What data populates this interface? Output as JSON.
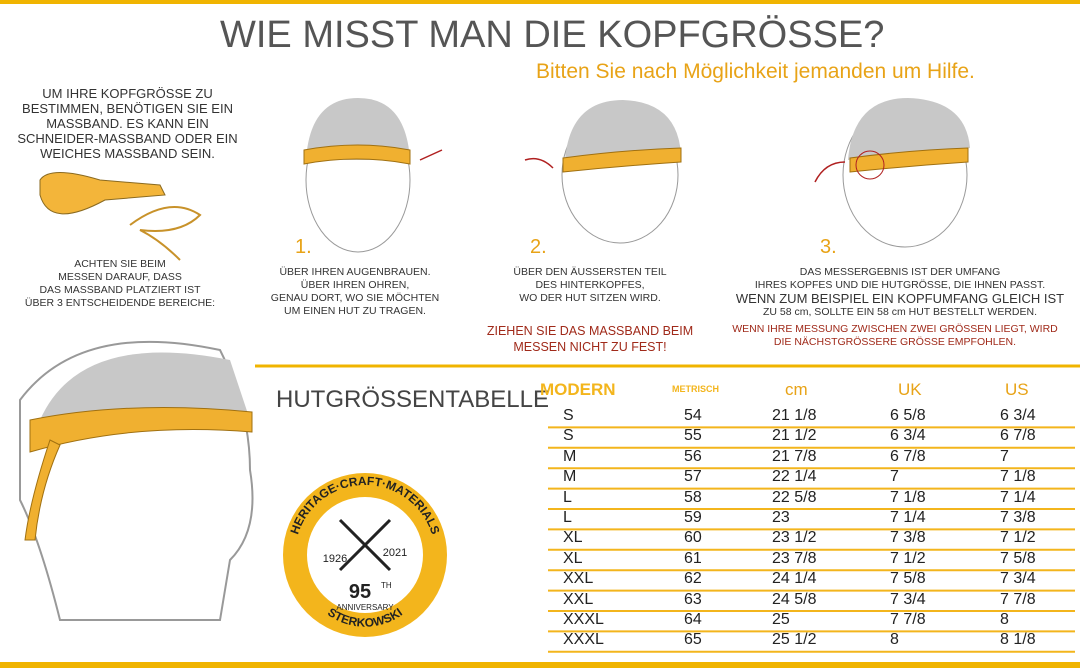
{
  "header": {
    "title": "WIE MISST MAN DIE KOPFGRÖSSE?",
    "subtitle": "Bitten Sie nach Möglichkeit jemanden um Hilfe."
  },
  "intro": {
    "lines": [
      "UM IHRE KOPFGRÖSSE ZU",
      "BESTIMMEN, BENÖTIGEN SIE EIN",
      "MASSBAND. ES KANN EIN",
      "SCHNEIDER-MASSBAND ODER EIN",
      "WEICHES MASSBAND SEIN."
    ],
    "note": [
      "ACHTEN SIE BEIM",
      "MESSEN DARAUF, DASS",
      "DAS MASSBAND PLATZIERT IST",
      "ÜBER 3 ENTSCHEIDENDE BEREICHE:"
    ]
  },
  "steps": [
    {
      "number": "1.",
      "lines": [
        "ÜBER IHREN AUGENBRAUEN.",
        "ÜBER IHREN OHREN,",
        "GENAU DORT, WO SIE MÖCHTEN",
        "UM EINEN HUT ZU TRAGEN."
      ]
    },
    {
      "number": "2.",
      "lines": [
        "ÜBER DEN ÄUSSERSTEN TEIL",
        "DES HINTERKOPFES,",
        "WO DER HUT SITZEN WIRD."
      ]
    },
    {
      "number": "3.",
      "lines": [
        "DAS MESSERGEBNIS IST DER UMFANG",
        "IHRES KOPFES UND DIE HUTGRÖSSE, DIE IHNEN PASST.",
        "WENN ZUM BEISPIEL EIN KOPFUMFANG GLEICH IST",
        "ZU     58 cm, SOLLTE EIN 58 cm HUT BESTELLT WERDEN."
      ]
    }
  ],
  "warning": [
    "ZIEHEN SIE DAS MASSBAND BEIM",
    "MESSEN NICHT ZU FEST!"
  ],
  "advice": [
    "WENN IHRE MESSUNG ZWISCHEN ZWEI GRÖSSEN LIEGT, WIRD",
    "DIE NÄCHSTGRÖSSERE GRÖSSE EMPFOHLEN."
  ],
  "table": {
    "title": "HUTGRÖSSENTABELLE",
    "columns": [
      "MODERN",
      "METRISCH",
      "cm",
      "UK",
      "US"
    ],
    "rows": [
      [
        "S",
        "54",
        "21 1/8",
        "6 5/8",
        "6 3/4"
      ],
      [
        "S",
        "55",
        "21 1/2",
        "6 3/4",
        "6 7/8"
      ],
      [
        "M",
        "56",
        "21 7/8",
        "6 7/8",
        "7"
      ],
      [
        "M",
        "57",
        "22 1/4",
        "7",
        "7 1/8"
      ],
      [
        "L",
        "58",
        "22 5/8",
        "7 1/8",
        "7 1/4"
      ],
      [
        "L",
        "59",
        "23",
        "7 1/4",
        "7 3/8"
      ],
      [
        "XL",
        "60",
        "23 1/2",
        "7 3/8",
        "7 1/2"
      ],
      [
        "XL",
        "61",
        "23 7/8",
        "7 1/2",
        "7 5/8"
      ],
      [
        "XXL",
        "62",
        "24 1/4",
        "7 5/8",
        "7 3/4"
      ],
      [
        "XXL",
        "63",
        "24 5/8",
        "7 3/4",
        "7 7/8"
      ],
      [
        "XXXL",
        "64",
        "25",
        "7 7/8",
        "8"
      ],
      [
        "XXXL",
        "65",
        "25 1/2",
        "8",
        "8 1/8"
      ]
    ]
  },
  "badge": {
    "ring_top": "HERITAGE·CRAFT·MATERIALS",
    "ring_bottom": "STERKOWSKI",
    "year_from": "1926",
    "year_to": "2021",
    "number": "95",
    "suffix": "TH",
    "caption": "ANNIVERSARY"
  }
}
